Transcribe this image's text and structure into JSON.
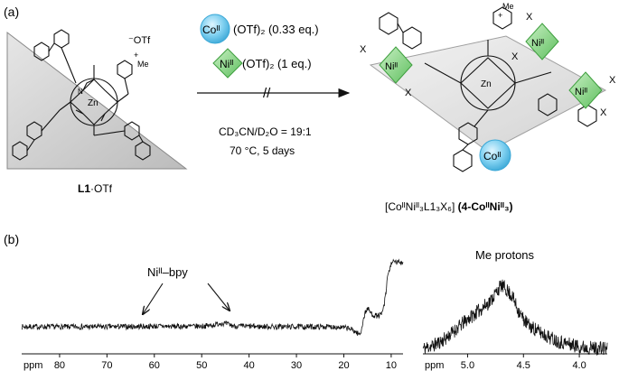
{
  "panel_a": {
    "label": "(a)",
    "ligand": {
      "counterion": "⁻OTf",
      "pyridinium_label": "Me",
      "pyridinium_charge": "+",
      "zn": "Zn",
      "n_atom": "N",
      "name_bold": "L1",
      "name_rest": "·OTf"
    },
    "reagents": {
      "co_badge": "Coᴵᴵ",
      "co_text": "(OTf)₂ (0.33 eq.)",
      "ni_badge": "Niᴵᴵ",
      "ni_text": "(OTf)₂ (1 eq.)",
      "arrow_break": "//",
      "solvent": "CD₃CN/D₂O = 19:1",
      "conditions": "70 °C, 5 days"
    },
    "product": {
      "x_ligand": "X",
      "co_badge": "Coᴵᴵ",
      "ni_badge": "Niᴵᴵ",
      "zn": "Zn",
      "pyridinium_label": "Me",
      "pyridinium_charge": "+",
      "formula": "[CoᴵᴵNiᴵᴵ₃L1₃X₆]",
      "compound_name": "(4-CoᴵᴵNiᴵᴵ₃)"
    }
  },
  "panel_b": {
    "label": "(b)",
    "annotation_nibpy": "Niᴵᴵ–bpy",
    "annotation_me": "Me protons"
  },
  "chart_data": [
    {
      "type": "line",
      "xlabel": "ppm",
      "x_reversed": true,
      "xlim": [
        88,
        7.5
      ],
      "x_ticks": [
        80,
        70,
        60,
        50,
        40,
        30,
        20,
        10
      ],
      "grid": false,
      "series": [
        {
          "x": [
            88,
            80,
            70,
            62,
            60,
            55,
            50,
            48,
            47,
            46,
            45,
            44,
            43,
            40,
            30,
            22,
            19,
            18,
            17,
            16.5,
            16,
            15.5,
            15,
            14.5,
            14,
            13,
            12,
            11.5,
            11,
            10.8,
            10.5,
            10.2,
            10
          ],
          "y": [
            0.0,
            0.0,
            0.0,
            0.01,
            0.02,
            0.01,
            0.02,
            0.04,
            0.08,
            0.12,
            0.1,
            0.06,
            0.02,
            0.01,
            0.0,
            0.0,
            -0.05,
            -0.12,
            -0.22,
            -0.26,
            0.15,
            0.45,
            0.6,
            0.5,
            0.4,
            0.35,
            0.4,
            0.7,
            1.2,
            1.65,
            1.8,
            1.9,
            2.1
          ]
        }
      ]
    },
    {
      "type": "line",
      "xlabel": "ppm",
      "x_reversed": true,
      "xlim": [
        5.4,
        3.75
      ],
      "x_ticks": [
        5.0,
        4.5,
        4.0
      ],
      "grid": false,
      "series": [
        {
          "x": [
            5.4,
            5.3,
            5.2,
            5.1,
            5.0,
            4.9,
            4.8,
            4.75,
            4.7,
            4.65,
            4.6,
            4.55,
            4.5,
            4.45,
            4.4,
            4.3,
            4.2,
            4.1,
            4.0,
            3.9,
            3.8,
            3.75
          ],
          "y": [
            0.0,
            0.05,
            0.15,
            0.3,
            0.45,
            0.58,
            0.72,
            0.85,
            0.97,
            0.9,
            0.8,
            0.6,
            0.45,
            0.35,
            0.3,
            0.2,
            0.12,
            0.07,
            0.03,
            0.01,
            0.0,
            0.0
          ]
        }
      ]
    }
  ]
}
